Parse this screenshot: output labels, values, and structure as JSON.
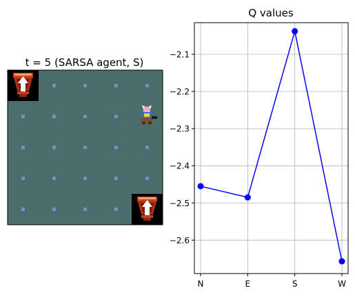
{
  "left_panel": {
    "title": "t = 5 (SARSA agent, S)",
    "grid": {
      "cols": 5,
      "rows": 5,
      "background": "#4a6e6c",
      "dot_color": "#6f93c2",
      "goals": [
        {
          "col": 0,
          "row": 0
        },
        {
          "col": 4,
          "row": 4
        }
      ],
      "agent": {
        "col": 4,
        "row": 1
      },
      "goal_icon": "treasure-chest-icon",
      "agent_icon": "horned-warrior-icon"
    }
  },
  "chart_data": {
    "type": "line",
    "title": "Q values",
    "xlabel": "",
    "ylabel": "",
    "categories": [
      "N",
      "E",
      "S",
      "W"
    ],
    "values": [
      -2.455,
      -2.485,
      -2.038,
      -2.657
    ],
    "ylim": [
      -2.69,
      -2.015
    ],
    "yticks": [
      -2.1,
      -2.2,
      -2.3,
      -2.4,
      -2.5,
      -2.6
    ],
    "ytick_labels": [
      "−2.1",
      "−2.2",
      "−2.3",
      "−2.4",
      "−2.5",
      "−2.6"
    ],
    "grid": true,
    "line_color": "#0000ff",
    "marker": "circle"
  }
}
